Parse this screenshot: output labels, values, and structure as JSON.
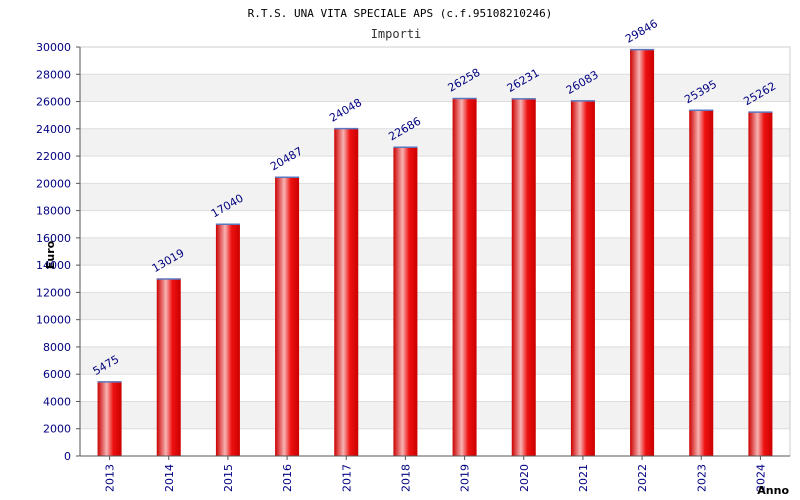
{
  "chart_data": {
    "type": "bar",
    "title": "R.T.S. UNA VITA SPECIALE APS (c.f.95108210246)",
    "subtitle": "Importi",
    "xlabel": "Anno",
    "ylabel": "Euro",
    "categories": [
      "2013",
      "2014",
      "2015",
      "2016",
      "2017",
      "2018",
      "2019",
      "2020",
      "2021",
      "2022",
      "2023",
      "2024"
    ],
    "values": [
      5475,
      13019,
      17040,
      20487,
      24048,
      22686,
      26258,
      26231,
      26083,
      29846,
      25395,
      25262
    ],
    "ylim": [
      0,
      30000
    ],
    "yticks": [
      0,
      2000,
      4000,
      6000,
      8000,
      10000,
      12000,
      14000,
      16000,
      18000,
      20000,
      22000,
      24000,
      26000,
      28000,
      30000
    ],
    "grid": true,
    "colors": {
      "bar_edge": "#cc0000",
      "bar_mid": "#f7b3b3",
      "bar_main": "#ee1111",
      "bar_top": "#5a78c0",
      "label_text": "#000080",
      "axis_text": "#000080",
      "band": "#f2f2f2",
      "gridline": "#dddddd"
    }
  }
}
